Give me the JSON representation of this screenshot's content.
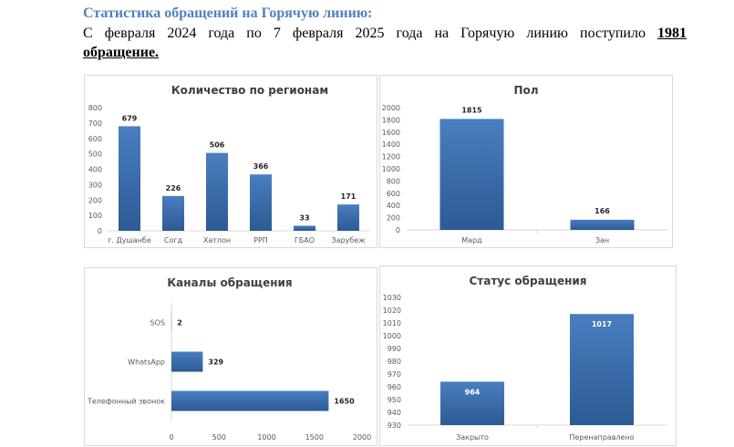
{
  "heading": "Статистика обращений на Горячую линию:",
  "intro": {
    "text": "С февраля 2024 года по 7 февраля 2025 года на Горячую линию поступило",
    "count": "1981",
    "tail": "обращение."
  },
  "colors": {
    "heading": "#4f81bd",
    "bar_top": "#4a7ec0",
    "bar_bottom": "#2c5a94",
    "axis": "#d9d9d9"
  },
  "chart_data": [
    {
      "type": "bar",
      "title": "Количество по регионам",
      "categories": [
        "г. Душанбе",
        "Согд",
        "Хатлон",
        "РРП",
        "ГБАО",
        "Зарубеж"
      ],
      "values": [
        679,
        226,
        506,
        366,
        33,
        171
      ],
      "ylim": [
        0,
        800
      ],
      "yticks": [
        "0",
        "100",
        "200",
        "300",
        "400",
        "500",
        "600",
        "700",
        "800"
      ]
    },
    {
      "type": "bar",
      "title": "Пол",
      "categories": [
        "Мард",
        "Зан"
      ],
      "values": [
        1815,
        166
      ],
      "ylim": [
        0,
        2000
      ],
      "yticks": [
        "0",
        "200",
        "400",
        "600",
        "800",
        "1000",
        "1200",
        "1400",
        "1600",
        "1800",
        "2000"
      ]
    },
    {
      "type": "bar",
      "orientation": "horizontal",
      "title": "Каналы обращения",
      "categories": [
        "SOS",
        "WhatsApp",
        "Телефонный звонок"
      ],
      "values": [
        2,
        329,
        1650
      ],
      "xlim": [
        0,
        2000
      ],
      "xticks": [
        "0",
        "500",
        "1000",
        "1500",
        "2000"
      ]
    },
    {
      "type": "bar",
      "title": "Статус обращения",
      "categories": [
        "Закрыто",
        "Перенаправлено"
      ],
      "values": [
        964,
        1017
      ],
      "ylim": [
        930,
        1030
      ],
      "yticks": [
        "930",
        "940",
        "950",
        "960",
        "970",
        "980",
        "990",
        "1000",
        "1010",
        "1020",
        "1030"
      ]
    }
  ]
}
